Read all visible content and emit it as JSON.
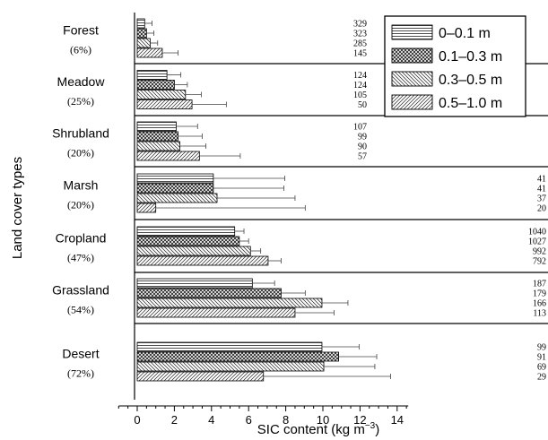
{
  "chart_data": {
    "type": "bar",
    "orientation": "horizontal",
    "xlabel_main": "SIC content (kg m",
    "xlabel_sup": "−3",
    "xlabel_end": ")",
    "ylabel": "Land cover types",
    "xlim": [
      -1,
      14.6
    ],
    "xticks": [
      "0",
      "2",
      "4",
      "6",
      "8",
      "10",
      "12",
      "14"
    ],
    "xtick_values": [
      0,
      2,
      4,
      6,
      8,
      10,
      12,
      14
    ],
    "legend_position": "top-right",
    "series": [
      {
        "name": "0–0.1 m",
        "pattern": "horizontal-lines"
      },
      {
        "name": "0.1–0.3 m",
        "pattern": "crosshatch"
      },
      {
        "name": "0.3–0.5 m",
        "pattern": "back-diagonal"
      },
      {
        "name": "0.5–1.0 m",
        "pattern": "forward-diagonal"
      }
    ],
    "categories": [
      {
        "name": "Forest",
        "pct": "(6%)",
        "values": [
          0.4,
          0.5,
          0.7,
          1.35
        ],
        "errors": [
          0.4,
          0.4,
          0.4,
          0.85
        ],
        "counts": [
          "329",
          "323",
          "285",
          "145"
        ]
      },
      {
        "name": "Meadow",
        "pct": "(25%)",
        "values": [
          1.6,
          2.0,
          2.6,
          2.95
        ],
        "errors": [
          0.75,
          0.7,
          0.85,
          1.85
        ],
        "counts": [
          "124",
          "124",
          "105",
          "50"
        ]
      },
      {
        "name": "Shrubland",
        "pct": "(20%)",
        "values": [
          2.1,
          2.2,
          2.3,
          3.35
        ],
        "errors": [
          1.15,
          1.3,
          1.4,
          2.2
        ],
        "counts": [
          "107",
          "99",
          "90",
          "57"
        ]
      },
      {
        "name": "Marsh",
        "pct": "(20%)",
        "values": [
          4.1,
          4.1,
          4.3,
          1.0
        ],
        "errors": [
          3.85,
          3.8,
          4.2,
          8.05
        ],
        "counts": [
          "41",
          "41",
          "37",
          "20"
        ]
      },
      {
        "name": "Cropland",
        "pct": "(47%)",
        "values": [
          5.25,
          5.5,
          6.1,
          7.05
        ],
        "errors": [
          0.5,
          0.5,
          0.55,
          0.7
        ],
        "counts": [
          "1040",
          "1027",
          "992",
          "792"
        ]
      },
      {
        "name": "Grassland",
        "pct": "(54%)",
        "values": [
          6.2,
          7.75,
          9.95,
          8.5
        ],
        "errors": [
          1.2,
          1.3,
          1.4,
          2.1
        ],
        "counts": [
          "187",
          "179",
          "166",
          "113"
        ]
      },
      {
        "name": "Desert",
        "pct": "(72%)",
        "values": [
          9.95,
          10.85,
          10.05,
          6.8
        ],
        "errors": [
          2.0,
          2.05,
          2.75,
          6.85
        ],
        "counts": [
          "99",
          "91",
          "69",
          "29"
        ]
      }
    ]
  }
}
